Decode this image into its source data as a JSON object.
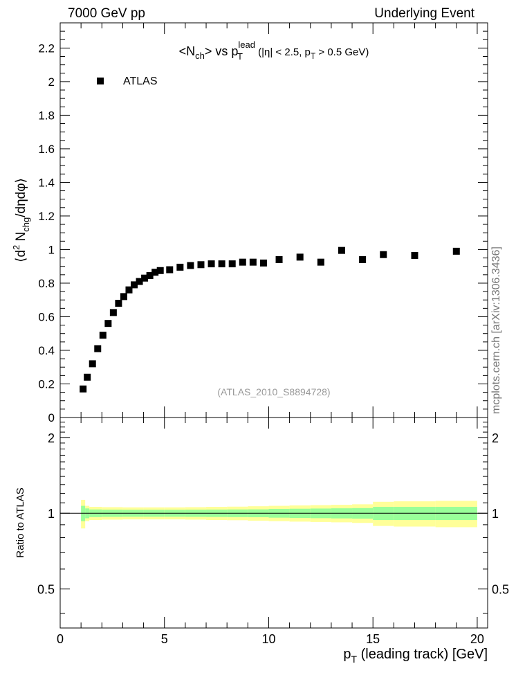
{
  "header": {
    "left": "7000 GeV pp",
    "right": "Underlying Event",
    "side": "mcplots.cern.ch [arXiv:1306.3436]"
  },
  "chart_data": [
    {
      "type": "scatter",
      "title_parts": {
        "t1": "<N",
        "t1sub": "ch",
        "t2": "> vs p",
        "t2sup": "lead",
        "t2sub": "T",
        "t3": " (|η| < 2.5, p",
        "t3sub": "T",
        "t4": " > 0.5 GeV)"
      },
      "ylabel_parts": {
        "a": "⟨d",
        "asup": "2",
        "b": " N",
        "bsub": "chg",
        "c": "/dηdφ⟩"
      },
      "xlim": [
        0,
        20.5
      ],
      "ylim": [
        0,
        2.35
      ],
      "ytick_labels": [
        "0",
        "0.2",
        "0.4",
        "0.6",
        "0.8",
        "1",
        "1.2",
        "1.4",
        "1.6",
        "1.8",
        "2",
        "2.2"
      ],
      "legend": {
        "label": "ATLAS",
        "position": "top-left"
      },
      "watermark": "(ATLAS_2010_S8894728)",
      "series": [
        {
          "name": "ATLAS",
          "color": "#000000",
          "x": [
            1.1,
            1.3,
            1.55,
            1.8,
            2.05,
            2.3,
            2.55,
            2.8,
            3.05,
            3.3,
            3.55,
            3.8,
            4.05,
            4.3,
            4.55,
            4.8,
            5.25,
            5.75,
            6.25,
            6.75,
            7.25,
            7.75,
            8.25,
            8.75,
            9.25,
            9.75,
            10.5,
            11.5,
            12.5,
            13.5,
            14.5,
            15.5,
            17.0,
            19.0
          ],
          "y": [
            0.17,
            0.24,
            0.32,
            0.41,
            0.49,
            0.56,
            0.625,
            0.68,
            0.72,
            0.76,
            0.79,
            0.81,
            0.83,
            0.845,
            0.865,
            0.875,
            0.88,
            0.895,
            0.905,
            0.91,
            0.915,
            0.915,
            0.915,
            0.925,
            0.925,
            0.92,
            0.94,
            0.955,
            0.925,
            0.995,
            0.94,
            0.97,
            0.965,
            0.99
          ]
        }
      ]
    },
    {
      "type": "area",
      "ylabel": "Ratio to ATLAS",
      "xlabel_parts": {
        "a": "p",
        "asub": "T",
        "b": " (leading track) [GeV]"
      },
      "xlim": [
        0,
        20.5
      ],
      "ylim": [
        0.35,
        2.4
      ],
      "log_y": true,
      "xtick_labels": [
        "0",
        "5",
        "10",
        "15",
        "20"
      ],
      "ytick_labels": [
        "0.5",
        "1",
        "2"
      ],
      "bins": [
        1.0,
        1.2,
        1.4,
        2.0,
        3.0,
        4.0,
        5.0,
        6.0,
        7.0,
        8.0,
        9.0,
        10.0,
        11.0,
        12.0,
        13.0,
        14.0,
        15.0,
        16.0,
        18.0,
        20.0
      ],
      "green_band": [
        0.07,
        0.045,
        0.035,
        0.033,
        0.032,
        0.032,
        0.032,
        0.033,
        0.034,
        0.035,
        0.036,
        0.04,
        0.042,
        0.044,
        0.046,
        0.048,
        0.06,
        0.06,
        0.06
      ],
      "yellow_band": [
        0.13,
        0.07,
        0.06,
        0.057,
        0.055,
        0.055,
        0.055,
        0.057,
        0.06,
        0.062,
        0.066,
        0.07,
        0.074,
        0.077,
        0.08,
        0.085,
        0.11,
        0.115,
        0.12
      ],
      "colors": {
        "green": "#99ff99",
        "yellow": "#ffff99"
      }
    }
  ]
}
